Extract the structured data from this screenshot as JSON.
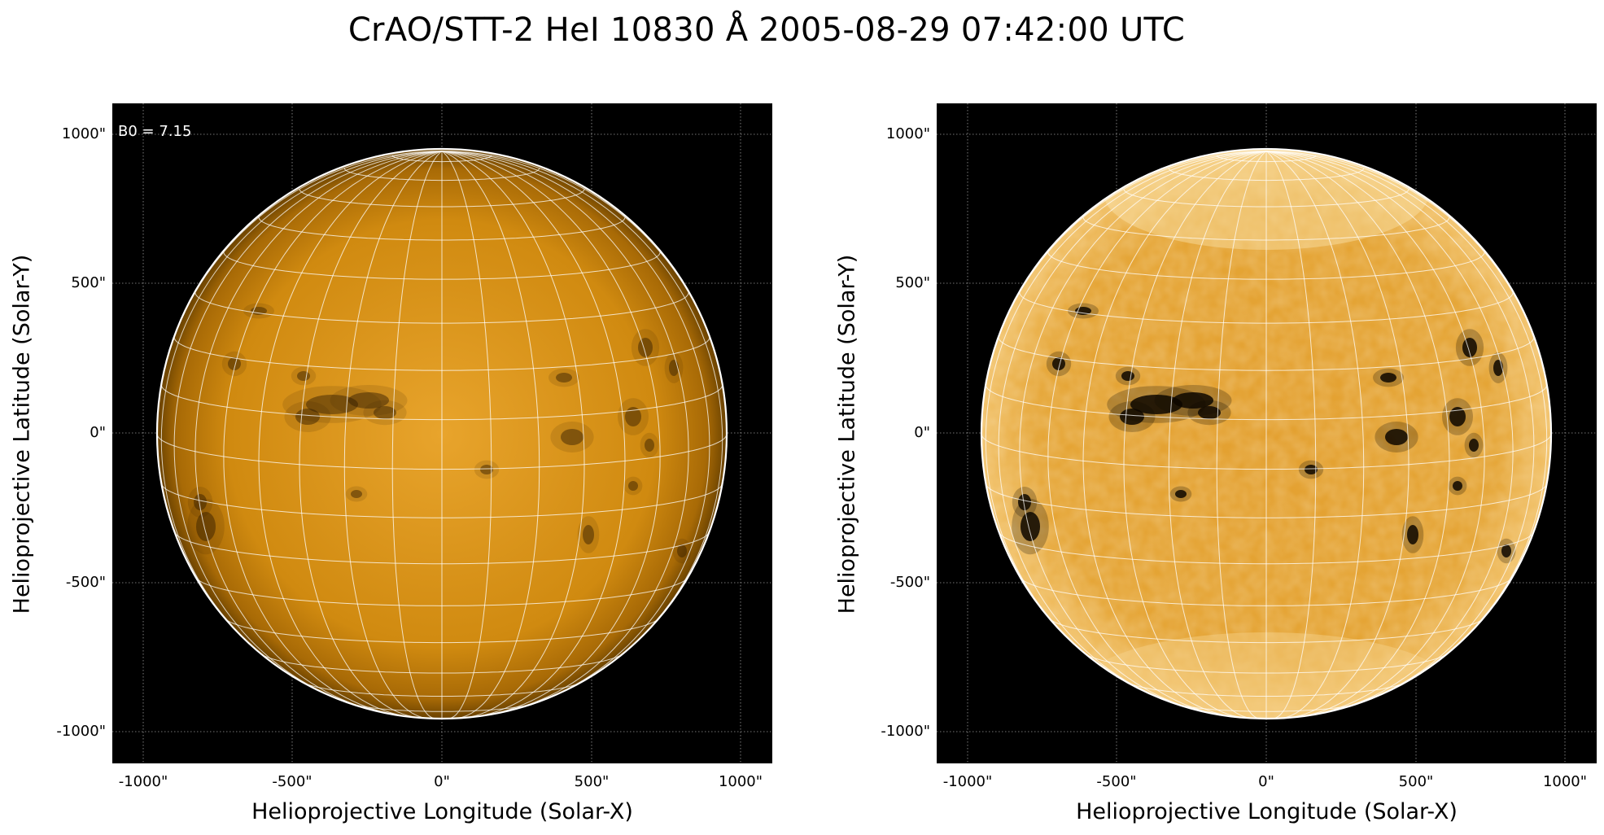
{
  "title": "CrAO/STT-2 HeI 10830 Å 2005-08-29 07:42:00 UTC",
  "colors": {
    "sun_base": "#d48a0a",
    "sun_light": "#e9a52a",
    "sun_dark": "#3a2200",
    "background": "#000000",
    "grid": "#ffffff"
  },
  "panels": [
    {
      "id": "left",
      "annotation": "B0 = 7.15",
      "xlabel": "Helioprojective Longitude (Solar-X)",
      "ylabel": "Helioprojective Latitude (Solar-Y)",
      "xticks": [
        "-1000\"",
        "-500\"",
        "0\"",
        "500\"",
        "1000\""
      ],
      "yticks": [
        "1000\"",
        "500\"",
        "0\"",
        "-500\"",
        "-1000\""
      ]
    },
    {
      "id": "right",
      "annotation": "",
      "xlabel": "Helioprojective Longitude (Solar-X)",
      "ylabel": "Helioprojective Latitude (Solar-Y)",
      "xticks": [
        "-1000\"",
        "-500\"",
        "0\"",
        "500\"",
        "1000\""
      ],
      "yticks": [
        "1000\"",
        "500\"",
        "0\"",
        "-500\"",
        "-1000\""
      ]
    }
  ]
}
